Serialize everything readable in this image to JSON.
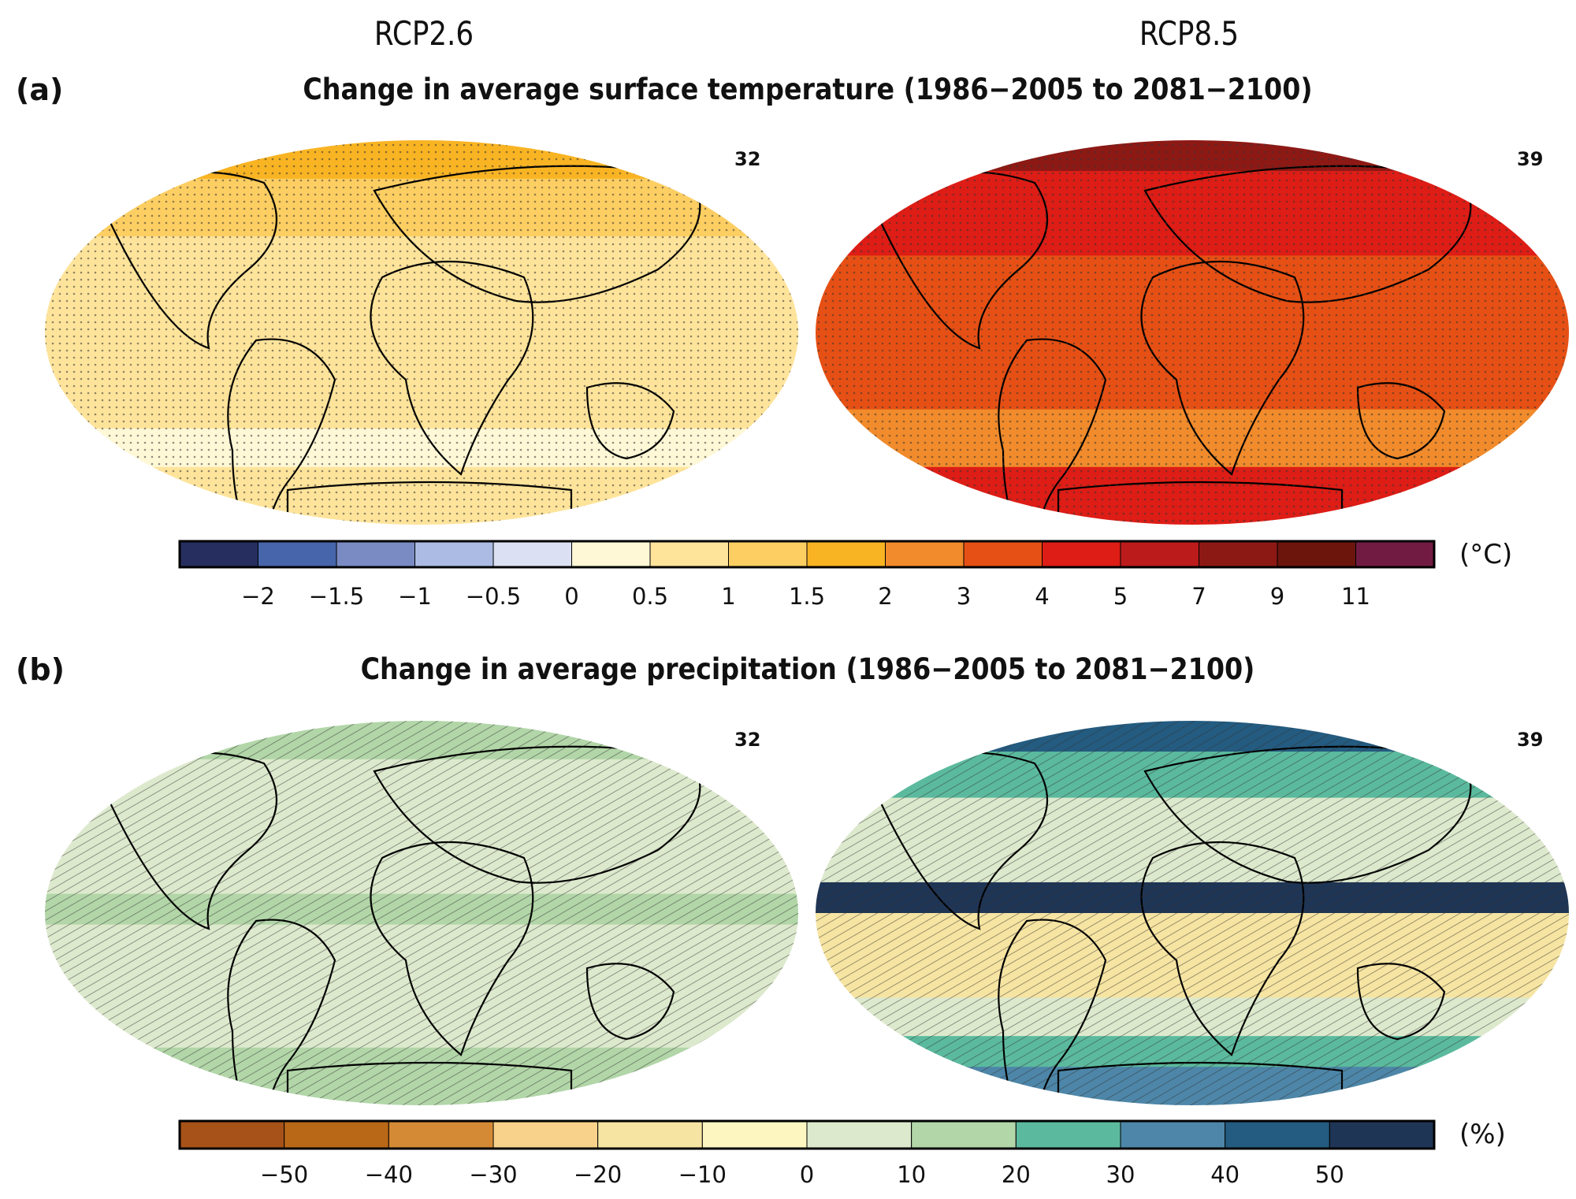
{
  "scenarios": {
    "left": "RCP2.6",
    "right": "RCP8.5"
  },
  "panel_a": {
    "label": "(a)",
    "title": "Change in average surface temperature (1986−2005 to 2081−2100)",
    "model_count_left": "32",
    "model_count_right": "39",
    "unit": "(°C)",
    "colorbar": {
      "colors": [
        "#252e5e",
        "#4765ab",
        "#7a8bc3",
        "#abbbe3",
        "#dbe0f2",
        "#fff8d6",
        "#fee49b",
        "#fdce62",
        "#f9b423",
        "#f18b2b",
        "#e65014",
        "#dd1d16",
        "#bb1b1a",
        "#8d1915",
        "#6c150d",
        "#711b43"
      ],
      "ticks": [
        "−2",
        "−1.5",
        "−1",
        "−0.5",
        "0",
        "0.5",
        "1",
        "1.5",
        "2",
        "3",
        "4",
        "5",
        "7",
        "9",
        "11"
      ]
    }
  },
  "panel_b": {
    "label": "(b)",
    "title": "Change in average precipitation (1986−2005 to 2081−2100)",
    "model_count_left": "32",
    "model_count_right": "39",
    "unit": "(%)",
    "colorbar": {
      "colors": [
        "#a65218",
        "#b96818",
        "#d48a35",
        "#f8d28a",
        "#f6e4a2",
        "#fdf6c0",
        "#dde9cd",
        "#b2d6a8",
        "#5bba9d",
        "#4d86a8",
        "#245b80",
        "#1f3555"
      ],
      "ticks": [
        "−50",
        "−40",
        "−30",
        "−20",
        "−10",
        "0",
        "10",
        "20",
        "30",
        "40",
        "50"
      ]
    }
  }
}
